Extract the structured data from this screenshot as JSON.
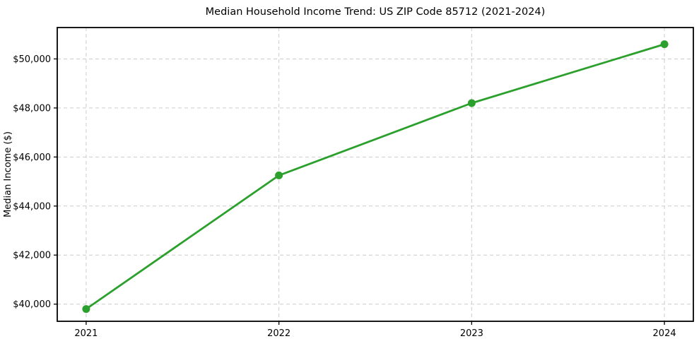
{
  "chart_data": {
    "type": "line",
    "title": "Median Household Income Trend: US ZIP Code 85712 (2021-2024)",
    "xlabel": "",
    "ylabel": "Median Income ($)",
    "x": [
      2021,
      2022,
      2023,
      2024
    ],
    "xtick_labels": [
      "2021",
      "2022",
      "2023",
      "2024"
    ],
    "series": [
      {
        "name": "Median Household Income",
        "values": [
          39800,
          45250,
          48200,
          50600
        ]
      }
    ],
    "yticks": [
      40000,
      42000,
      44000,
      46000,
      48000,
      50000
    ],
    "ytick_labels": [
      "$40,000",
      "$42,000",
      "$44,000",
      "$46,000",
      "$48,000",
      "$50,000"
    ],
    "xlim": [
      2020.85,
      2024.15
    ],
    "ylim": [
      39300,
      51280
    ],
    "grid": true,
    "grid_style": "dashed",
    "legend": "none",
    "colors": {
      "line": "#2ca02c",
      "marker": "#2ca02c",
      "grid": "#cccccc",
      "axis_border": "#000000",
      "text": "#000000",
      "background": "#ffffff"
    }
  }
}
